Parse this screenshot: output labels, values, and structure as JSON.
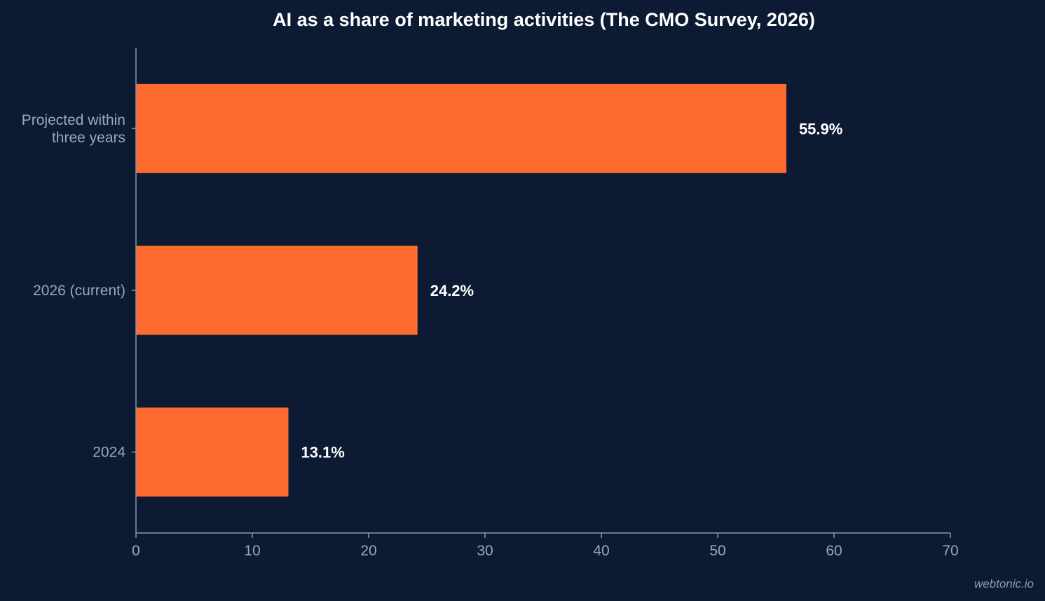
{
  "chart_data": {
    "type": "bar",
    "orientation": "horizontal",
    "title": "AI as a share of marketing activities (The CMO Survey, 2026)",
    "categories": [
      "Projected within three years",
      "2026 (current)",
      "2024"
    ],
    "category_lines": [
      [
        "Projected within",
        "three years"
      ],
      [
        "2026 (current)"
      ],
      [
        "2024"
      ]
    ],
    "values": [
      55.9,
      24.2,
      13.1
    ],
    "data_labels": [
      "55.9%",
      "24.2%",
      "13.1%"
    ],
    "xlim": [
      0,
      70
    ],
    "xticks": [
      0,
      10,
      20,
      30,
      40,
      50,
      60,
      70
    ],
    "xlabel": "",
    "ylabel": "",
    "grid": false,
    "colors": {
      "background": "#0c1a33",
      "bar": "#ff6b2f",
      "axis": "#8a96aa"
    }
  },
  "watermark": "webtonic.io"
}
